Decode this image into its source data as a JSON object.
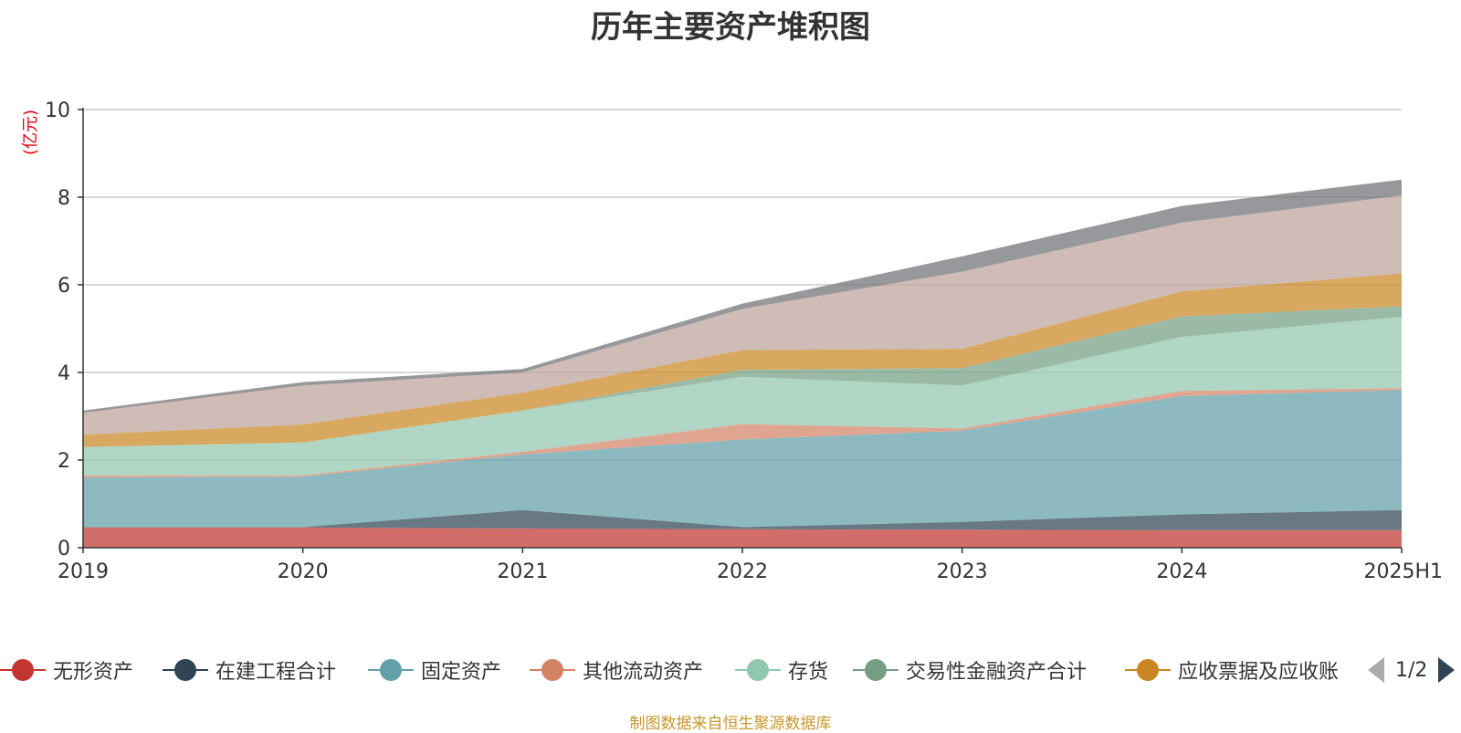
{
  "title": "历年主要资产堆积图",
  "unit": "(亿元)",
  "source_note": "制图数据来自恒生聚源数据库",
  "legend_pager": {
    "text": "1/2"
  },
  "legend_items": [
    {
      "name": "无形资产",
      "color": "#c23531"
    },
    {
      "name": "在建工程合计",
      "color": "#2f4554"
    },
    {
      "name": "固定资产",
      "color": "#61a0a8"
    },
    {
      "name": "其他流动资产",
      "color": "#d48265"
    },
    {
      "name": "存货",
      "color": "#91c7ae"
    },
    {
      "name": "交易性金融资产合计",
      "color": "#749f83"
    },
    {
      "name": "应收票据及应收账",
      "color": "#ca8622"
    }
  ],
  "chart_data": {
    "type": "area",
    "stacked": true,
    "categories": [
      "2019",
      "2020",
      "2021",
      "2022",
      "2023",
      "2024",
      "2025H1"
    ],
    "y_ticks": [
      "0",
      "2",
      "4",
      "6",
      "8",
      "10"
    ],
    "ylim": [
      0,
      10
    ],
    "grid": true,
    "series": [
      {
        "name": "无形资产",
        "color": "#c23531",
        "values": [
          0.46,
          0.46,
          0.44,
          0.42,
          0.41,
          0.4,
          0.4
        ]
      },
      {
        "name": "在建工程合计",
        "color": "#2f4554",
        "values": [
          0.01,
          0.01,
          0.42,
          0.05,
          0.18,
          0.36,
          0.46
        ]
      },
      {
        "name": "固定资产",
        "color": "#61a0a8",
        "values": [
          1.13,
          1.15,
          1.27,
          2.0,
          2.08,
          2.7,
          2.74
        ]
      },
      {
        "name": "其他流动资产",
        "color": "#d48265",
        "values": [
          0.05,
          0.03,
          0.06,
          0.35,
          0.05,
          0.12,
          0.04
        ]
      },
      {
        "name": "存货",
        "color": "#91c7ae",
        "values": [
          0.65,
          0.75,
          0.94,
          1.08,
          0.98,
          1.23,
          1.63
        ]
      },
      {
        "name": "交易性金融资产合计",
        "color": "#749f83",
        "values": [
          0.0,
          0.0,
          0.0,
          0.16,
          0.4,
          0.47,
          0.24
        ]
      },
      {
        "name": "应收票据及应收账",
        "color": "#ca8622",
        "values": [
          0.28,
          0.41,
          0.41,
          0.45,
          0.44,
          0.57,
          0.75
        ]
      },
      {
        "name": "",
        "color": "#bda29a",
        "values": [
          0.5,
          0.89,
          0.46,
          0.94,
          1.76,
          1.57,
          1.78
        ]
      },
      {
        "name": "",
        "color": "#6e7074",
        "values": [
          0.05,
          0.08,
          0.08,
          0.12,
          0.35,
          0.38,
          0.36
        ]
      }
    ]
  }
}
